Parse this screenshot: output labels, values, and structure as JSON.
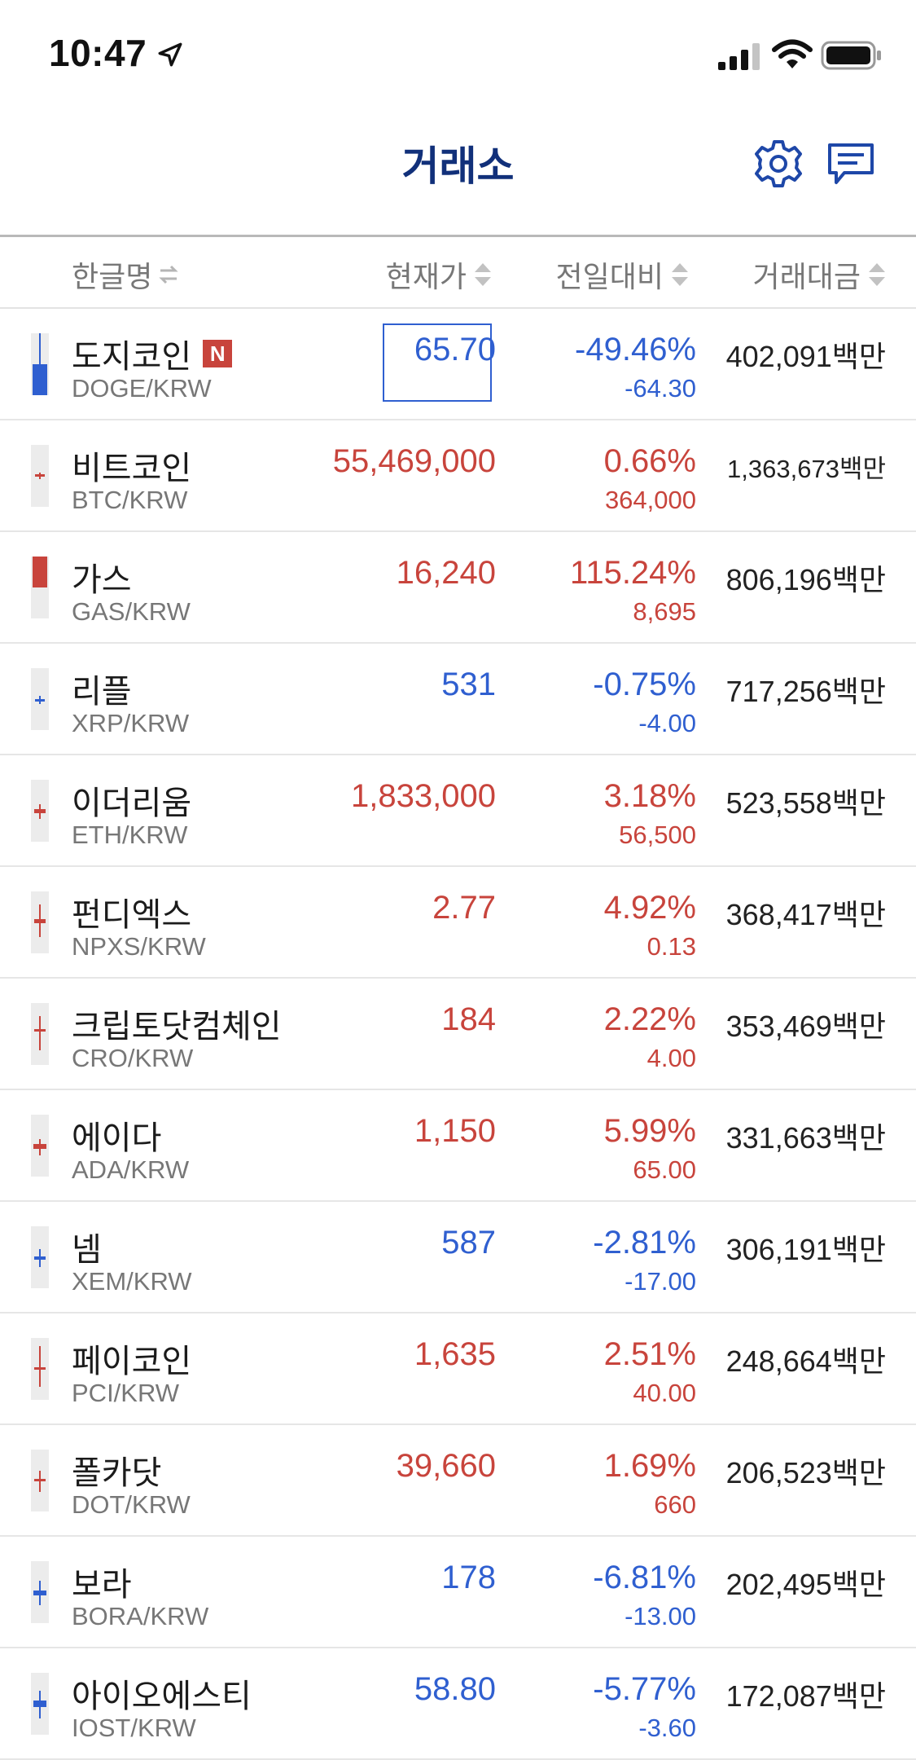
{
  "status_bar": {
    "time": "10:47"
  },
  "header": {
    "title": "거래소"
  },
  "columns": {
    "name": "한글명",
    "price": "현재가",
    "change": "전일대비",
    "volume": "거래대금"
  },
  "colors": {
    "rise": "#c8443c",
    "fall": "#2f5fd0",
    "title": "#11307a"
  },
  "coins": [
    {
      "name": "도지코인",
      "badge": "N",
      "pair": "DOGE/KRW",
      "price": "65.70",
      "pct": "-49.46%",
      "chg": "-64.30",
      "volume": "402,091백만",
      "dir": "down",
      "candle": "blue-big"
    },
    {
      "name": "비트코인",
      "pair": "BTC/KRW",
      "price": "55,469,000",
      "pct": "0.66%",
      "chg": "364,000",
      "volume": "1,363,673백만",
      "dir": "up",
      "candle": "tiny"
    },
    {
      "name": "가스",
      "pair": "GAS/KRW",
      "price": "16,240",
      "pct": "115.24%",
      "chg": "8,695",
      "volume": "806,196백만",
      "dir": "up",
      "candle": "red-big"
    },
    {
      "name": "리플",
      "pair": "XRP/KRW",
      "price": "531",
      "pct": "-0.75%",
      "chg": "-4.00",
      "volume": "717,256백만",
      "dir": "down",
      "candle": "tiny"
    },
    {
      "name": "이더리움",
      "pair": "ETH/KRW",
      "price": "1,833,000",
      "pct": "3.18%",
      "chg": "56,500",
      "volume": "523,558백만",
      "dir": "up",
      "candle": "small"
    },
    {
      "name": "펀디엑스",
      "pair": "NPXS/KRW",
      "price": "2.77",
      "pct": "4.92%",
      "chg": "0.13",
      "volume": "368,417백만",
      "dir": "up",
      "candle": "small-long"
    },
    {
      "name": "크립토닷컴체인",
      "pair": "CRO/KRW",
      "price": "184",
      "pct": "2.22%",
      "chg": "4.00",
      "volume": "353,469백만",
      "dir": "up",
      "candle": "small-long"
    },
    {
      "name": "에이다",
      "pair": "ADA/KRW",
      "price": "1,150",
      "pct": "5.99%",
      "chg": "65.00",
      "volume": "331,663백만",
      "dir": "up",
      "candle": "small"
    },
    {
      "name": "넴",
      "pair": "XEM/KRW",
      "price": "587",
      "pct": "-2.81%",
      "chg": "-17.00",
      "volume": "306,191백만",
      "dir": "down",
      "candle": "small"
    },
    {
      "name": "페이코인",
      "pair": "PCI/KRW",
      "price": "1,635",
      "pct": "2.51%",
      "chg": "40.00",
      "volume": "248,664백만",
      "dir": "up",
      "candle": "small-long"
    },
    {
      "name": "폴카닷",
      "pair": "DOT/KRW",
      "price": "39,660",
      "pct": "1.69%",
      "chg": "660",
      "volume": "206,523백만",
      "dir": "up",
      "candle": "small"
    },
    {
      "name": "보라",
      "pair": "BORA/KRW",
      "price": "178",
      "pct": "-6.81%",
      "chg": "-13.00",
      "volume": "202,495백만",
      "dir": "down",
      "candle": "small"
    },
    {
      "name": "아이오에스티",
      "pair": "IOST/KRW",
      "price": "58.80",
      "pct": "-5.77%",
      "chg": "-3.60",
      "volume": "172,087백만",
      "dir": "down",
      "candle": "small"
    }
  ]
}
